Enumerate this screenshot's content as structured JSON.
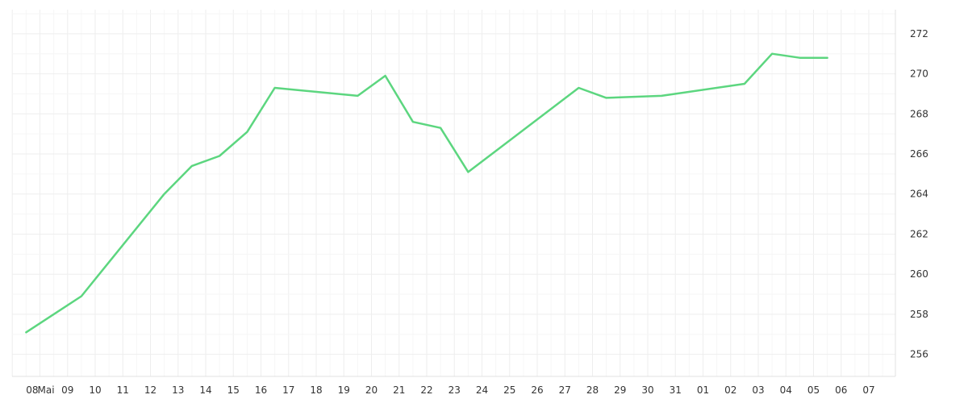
{
  "chart_data": {
    "type": "line",
    "title": "",
    "xlabel": "",
    "ylabel": "",
    "grid": true,
    "x_tick_labels": [
      "08",
      "Mai",
      "09",
      "10",
      "11",
      "12",
      "13",
      "14",
      "15",
      "16",
      "17",
      "18",
      "19",
      "20",
      "21",
      "22",
      "23",
      "24",
      "25",
      "26",
      "27",
      "28",
      "29",
      "30",
      "31",
      "01",
      "02",
      "03",
      "04",
      "05",
      "06",
      "07"
    ],
    "y_ticks": [
      256,
      258,
      260,
      262,
      264,
      266,
      268,
      270,
      272
    ],
    "ylim": [
      254.9,
      273.2
    ],
    "line_color": "#5cd67f",
    "grid_color": "#eeeeee",
    "series": [
      {
        "points": [
          {
            "date": "2023-05-07",
            "value": 257.1
          },
          {
            "date": "2023-05-09",
            "value": 258.9
          },
          {
            "date": "2023-05-12",
            "value": 264.0
          },
          {
            "date": "2023-05-13",
            "value": 265.4
          },
          {
            "date": "2023-05-14",
            "value": 265.9
          },
          {
            "date": "2023-05-15",
            "value": 267.1
          },
          {
            "date": "2023-05-16",
            "value": 269.3
          },
          {
            "date": "2023-05-19",
            "value": 268.9
          },
          {
            "date": "2023-05-20",
            "value": 269.9
          },
          {
            "date": "2023-05-21",
            "value": 267.6
          },
          {
            "date": "2023-05-22",
            "value": 267.3
          },
          {
            "date": "2023-05-23",
            "value": 265.1
          },
          {
            "date": "2023-05-27",
            "value": 269.3
          },
          {
            "date": "2023-05-28",
            "value": 268.8
          },
          {
            "date": "2023-05-30",
            "value": 268.9
          },
          {
            "date": "2023-06-02",
            "value": 269.5
          },
          {
            "date": "2023-06-03",
            "value": 271.0
          },
          {
            "date": "2023-06-04",
            "value": 270.8
          },
          {
            "date": "2023-06-05",
            "value": 270.8
          }
        ]
      }
    ]
  }
}
